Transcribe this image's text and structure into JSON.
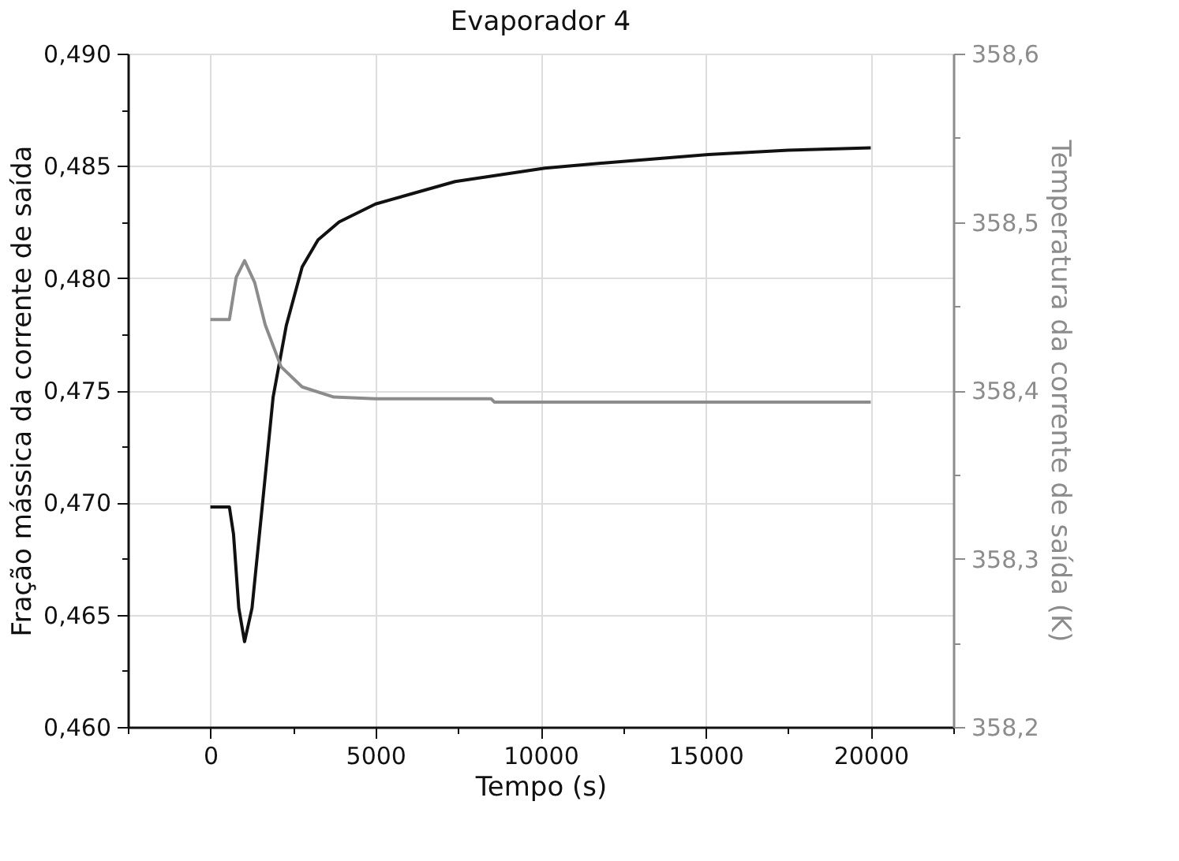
{
  "chart_data": {
    "type": "line",
    "title": "Evaporador 4",
    "xlabel": "Tempo (s)",
    "ylabel": "Fração mássica da corrente de saída",
    "y2label": "Temperatura da corrente de saída (K)",
    "xlim": [
      -2500,
      22500
    ],
    "xticks": [
      0,
      5000,
      10000,
      15000,
      20000,
      {
        "value": -2500,
        "label": null
      },
      {
        "value": 2500,
        "label": null
      },
      {
        "value": 7500,
        "label": null
      },
      {
        "value": 12500,
        "label": null
      },
      {
        "value": 17500,
        "label": null
      },
      {
        "value": 22500,
        "label": null
      }
    ],
    "ylim": [
      0.46,
      0.49
    ],
    "yticks": [
      {
        "value": 0.46,
        "label": "0,460"
      },
      {
        "value": 0.465,
        "label": "0,465"
      },
      {
        "value": 0.47,
        "label": "0,470"
      },
      {
        "value": 0.475,
        "label": "0,475"
      },
      {
        "value": 0.48,
        "label": "0,480"
      },
      {
        "value": 0.485,
        "label": "0,485"
      },
      {
        "value": 0.49,
        "label": "0,490"
      },
      {
        "value": 0.4625,
        "label": null
      },
      {
        "value": 0.4675,
        "label": null
      },
      {
        "value": 0.4725,
        "label": null
      },
      {
        "value": 0.4775,
        "label": null
      },
      {
        "value": 0.4825,
        "label": null
      },
      {
        "value": 0.4875,
        "label": null
      }
    ],
    "y2lim": [
      358.2,
      358.6
    ],
    "y2ticks": [
      {
        "value": 358.2,
        "label": "358,2"
      },
      {
        "value": 358.3,
        "label": "358,3"
      },
      {
        "value": 358.4,
        "label": "358,4"
      },
      {
        "value": 358.5,
        "label": "358,5"
      },
      {
        "value": 358.6,
        "label": "358,6"
      },
      {
        "value": 358.25,
        "label": null
      },
      {
        "value": 358.35,
        "label": null
      },
      {
        "value": 358.45,
        "label": null
      },
      {
        "value": 358.55,
        "label": null
      }
    ],
    "grid": true,
    "marker": "none",
    "line_style": "solid",
    "series": [
      {
        "color": "#111111",
        "x": [
          0,
          575,
          700,
          860,
          1035,
          1261,
          1582,
          1900,
          2301,
          2780,
          3260,
          3898,
          5000,
          7413,
          10130,
          12500,
          15083,
          17500,
          20000
        ],
        "values": [
          0.4698,
          0.4698,
          0.4686,
          0.4653,
          0.4638,
          0.4653,
          0.47,
          0.4747,
          0.4779,
          0.4805,
          0.4817,
          0.4825,
          0.4833,
          0.4843,
          0.4849,
          0.4852,
          0.4855,
          0.4857,
          0.4858
        ]
      },
      {
        "color": "#8c8c8c",
        "axis": "y2",
        "x": [
          0,
          575,
          781,
          1035,
          1342,
          1659,
          2140,
          2780,
          3739,
          5000,
          8500,
          8600,
          20000
        ],
        "values": [
          358.442,
          358.442,
          358.467,
          358.477,
          358.464,
          358.439,
          358.414,
          358.402,
          358.396,
          358.395,
          358.395,
          358.393,
          358.393
        ]
      }
    ]
  }
}
